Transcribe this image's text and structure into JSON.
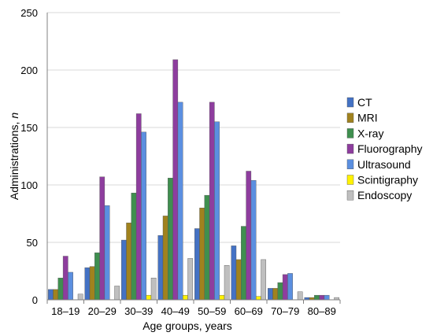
{
  "chart_data": {
    "type": "bar",
    "title": "",
    "xlabel": "Age groups, years",
    "ylabel_main": "Administrations, ",
    "ylabel_italic": "n",
    "ylim": [
      0,
      250
    ],
    "yticks": [
      0,
      50,
      100,
      150,
      200,
      250
    ],
    "grid": true,
    "legend_position": "right",
    "categories": [
      "18–19",
      "20–29",
      "30–39",
      "40–49",
      "50–59",
      "60–69",
      "70–79",
      "80–89"
    ],
    "series": [
      {
        "name": "CT",
        "color": "#4472C4",
        "values": [
          9,
          28,
          52,
          56,
          62,
          47,
          10,
          2
        ]
      },
      {
        "name": "MRI",
        "color": "#A0821E",
        "values": [
          9,
          29,
          67,
          73,
          80,
          35,
          10,
          2
        ]
      },
      {
        "name": "X-ray",
        "color": "#3F8F4F",
        "values": [
          19,
          41,
          93,
          106,
          91,
          64,
          15,
          4
        ]
      },
      {
        "name": "Fluorography",
        "color": "#8E3D9E",
        "values": [
          38,
          107,
          162,
          209,
          172,
          112,
          22,
          4
        ]
      },
      {
        "name": "Ultrasound",
        "color": "#5B8FE0",
        "values": [
          24,
          82,
          146,
          172,
          155,
          104,
          23,
          4
        ]
      },
      {
        "name": "Scintigraphy",
        "color": "#FFF200",
        "values": [
          0,
          0,
          4,
          4,
          4,
          3,
          0,
          0
        ]
      },
      {
        "name": "Endoscopy",
        "color": "#BFBFBF",
        "values": [
          5,
          12,
          19,
          36,
          30,
          35,
          7,
          2
        ]
      }
    ]
  }
}
